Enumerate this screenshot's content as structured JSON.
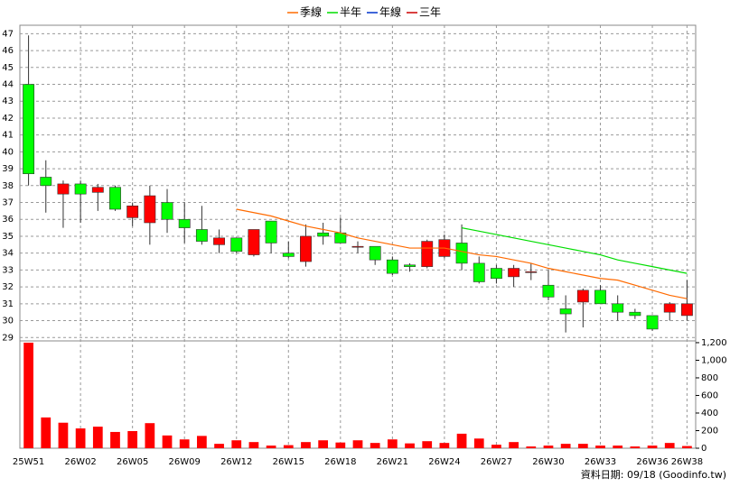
{
  "chart_data": {
    "type": "candlestick",
    "categories": [
      "25W51",
      null,
      null,
      "26W02",
      null,
      null,
      "26W05",
      null,
      null,
      "26W09",
      null,
      null,
      "26W12",
      null,
      null,
      "26W15",
      null,
      null,
      "26W18",
      null,
      null,
      "26W21",
      null,
      null,
      "26W24",
      null,
      null,
      "26W27",
      null,
      null,
      "26W30",
      null,
      null,
      "26W33",
      null,
      null,
      "26W36",
      null,
      "26W38"
    ],
    "open": [
      44,
      38.5,
      37.5,
      38.1,
      37.6,
      37.9,
      36.1,
      35.8,
      37.0,
      36.0,
      35.4,
      34.5,
      34.9,
      33.9,
      35.9,
      34.0,
      33.5,
      35.2,
      35.2,
      34.4,
      34.4,
      33.6,
      33.3,
      33.2,
      33.8,
      34.6,
      33.4,
      33.1,
      32.6,
      32.9,
      32.1,
      30.7,
      31.1,
      31.8,
      31.0,
      30.5,
      30.3,
      30.5,
      30.3
    ],
    "high": [
      46.9,
      39.5,
      38.3,
      38.3,
      38.1,
      38.0,
      37.0,
      38.0,
      37.8,
      37.0,
      36.8,
      35.4,
      34.9,
      35.4,
      35.9,
      34.7,
      35.7,
      35.8,
      36.1,
      34.7,
      34.4,
      33.8,
      33.4,
      34.8,
      35.1,
      35.7,
      33.8,
      33.3,
      33.3,
      33.4,
      33.0,
      31.5,
      31.9,
      32.1,
      31.5,
      30.7,
      30.3,
      31.1,
      32.4
    ],
    "low": [
      38.0,
      36.4,
      35.5,
      35.8,
      36.5,
      36.5,
      35.6,
      34.5,
      35.2,
      34.6,
      34.5,
      34.0,
      34.0,
      33.8,
      34.0,
      33.7,
      33.2,
      34.5,
      34.6,
      34.0,
      33.3,
      32.7,
      32.9,
      33.1,
      33.7,
      33.0,
      32.2,
      32.2,
      32.0,
      32.4,
      31.2,
      29.3,
      29.6,
      31.0,
      30.0,
      30.1,
      29.4,
      30.0,
      30.0
    ],
    "close": [
      38.7,
      38.0,
      38.1,
      37.5,
      37.9,
      36.6,
      36.8,
      37.4,
      36.0,
      35.5,
      34.7,
      34.9,
      34.1,
      35.4,
      34.6,
      33.8,
      35.0,
      35.0,
      34.6,
      34.4,
      33.6,
      32.8,
      33.2,
      34.7,
      34.8,
      33.4,
      32.3,
      32.5,
      33.1,
      32.9,
      31.4,
      30.4,
      31.8,
      31.0,
      30.5,
      30.3,
      29.5,
      31.0,
      31.0
    ],
    "up_color": "#ff0000",
    "down_color": "#00ff00",
    "ylim": [
      28.8,
      47.5
    ],
    "yticks": [
      29,
      30,
      31,
      32,
      33,
      34,
      35,
      36,
      37,
      38,
      39,
      40,
      41,
      42,
      43,
      44,
      45,
      46,
      47
    ],
    "grid": true,
    "lines": [
      {
        "name": "季線",
        "color": "#ff6a00",
        "values": [
          null,
          null,
          null,
          null,
          null,
          null,
          null,
          null,
          null,
          null,
          null,
          null,
          36.6,
          36.4,
          36.2,
          35.9,
          35.6,
          35.4,
          35.2,
          34.9,
          34.7,
          34.5,
          34.3,
          34.3,
          34.3,
          34.1,
          33.9,
          33.8,
          33.6,
          33.4,
          33.1,
          32.9,
          32.7,
          32.5,
          32.4,
          32.1,
          31.8,
          31.5,
          31.3
        ]
      },
      {
        "name": "半年",
        "color": "#00dd00",
        "values": [
          null,
          null,
          null,
          null,
          null,
          null,
          null,
          null,
          null,
          null,
          null,
          null,
          null,
          null,
          null,
          null,
          null,
          null,
          null,
          null,
          null,
          null,
          null,
          null,
          null,
          35.5,
          35.3,
          35.1,
          34.9,
          34.7,
          34.5,
          34.3,
          34.1,
          33.9,
          33.6,
          33.4,
          33.2,
          33.0,
          32.8
        ]
      },
      {
        "name": "年線",
        "color": "#0033cc",
        "values": [
          null,
          null,
          null,
          null,
          null,
          null,
          null,
          null,
          null,
          null,
          null,
          null,
          null,
          null,
          null,
          null,
          null,
          null,
          null,
          null,
          null,
          null,
          null,
          null,
          null,
          null,
          null,
          null,
          null,
          null,
          null,
          null,
          null,
          null,
          null,
          null,
          null,
          null,
          null
        ]
      },
      {
        "name": "三年",
        "color": "#cc0000",
        "values": [
          null,
          null,
          null,
          null,
          null,
          null,
          null,
          null,
          null,
          null,
          null,
          null,
          null,
          null,
          null,
          null,
          null,
          null,
          null,
          null,
          null,
          null,
          null,
          null,
          null,
          null,
          null,
          null,
          null,
          null,
          null,
          null,
          null,
          null,
          null,
          null,
          null,
          null,
          null
        ]
      }
    ],
    "volume": {
      "color": "#ff0000",
      "values": [
        1200,
        350,
        290,
        225,
        245,
        185,
        195,
        285,
        145,
        100,
        140,
        50,
        90,
        70,
        30,
        35,
        70,
        90,
        65,
        90,
        60,
        100,
        55,
        80,
        60,
        165,
        110,
        40,
        70,
        20,
        30,
        50,
        50,
        30,
        30,
        20,
        30,
        60,
        25
      ],
      "ylim": [
        0,
        1220
      ],
      "yticks": [
        0,
        200,
        400,
        600,
        800,
        {
          "value": 1000,
          "label": "1,000"
        },
        {
          "value": 1200,
          "label": "1,200"
        }
      ]
    },
    "footnote": "資料日期: 09/18  (Goodinfo.tw)"
  }
}
